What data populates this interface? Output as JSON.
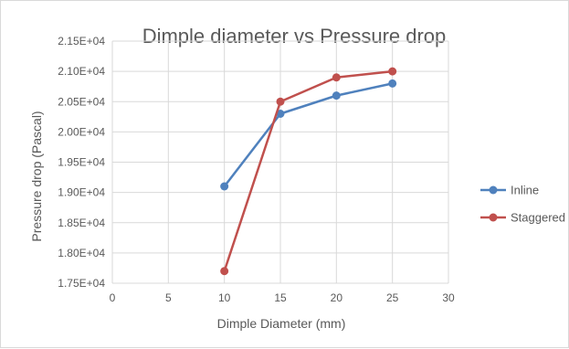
{
  "chart_data": {
    "type": "line",
    "title": "Dimple diameter vs Pressure drop",
    "xlabel": "Dimple Diameter (mm)",
    "ylabel": "Pressure drop (Pascal)",
    "xlim": [
      0,
      30
    ],
    "ylim": [
      17500,
      21500
    ],
    "x_ticks": [
      0,
      5,
      10,
      15,
      20,
      25,
      30
    ],
    "x_tick_labels": [
      "0",
      "5",
      "10",
      "15",
      "20",
      "25",
      "30"
    ],
    "y_ticks": [
      17500,
      18000,
      18500,
      19000,
      19500,
      20000,
      20500,
      21000,
      21500
    ],
    "y_tick_labels": [
      "1.75E+04",
      "1.80E+04",
      "1.85E+04",
      "1.90E+04",
      "1.95E+04",
      "2.00E+04",
      "2.05E+04",
      "2.10E+04",
      "2.15E+04"
    ],
    "grid": true,
    "legend_position": "right",
    "series": [
      {
        "name": "Inline",
        "color": "#4f81bd",
        "x": [
          10,
          15,
          20,
          25
        ],
        "y": [
          19100,
          20300,
          20600,
          20800
        ]
      },
      {
        "name": "Staggered",
        "color": "#c0504d",
        "x": [
          10,
          15,
          20,
          25
        ],
        "y": [
          17700,
          20500,
          20900,
          21000
        ]
      }
    ]
  }
}
